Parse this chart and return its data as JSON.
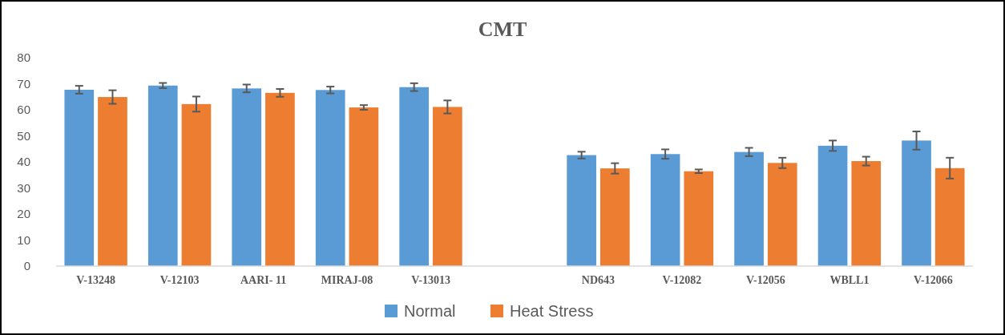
{
  "chart_data": {
    "type": "bar",
    "title": "CMT",
    "categories": [
      "V-13248",
      "V-12103",
      "AARI- 11",
      "MIRAJ-08",
      "V-13013",
      null,
      "ND643",
      "V-12082",
      "V-12056",
      "WBLL1",
      "V-12066"
    ],
    "series": [
      {
        "name": "Normal",
        "color": "#5b9bd5",
        "values": [
          67.7,
          69.3,
          68.2,
          67.6,
          68.7,
          null,
          42.6,
          43,
          43.8,
          46.2,
          48.2
        ],
        "errors": [
          1.5,
          1,
          1.5,
          1.3,
          1.5,
          null,
          1.3,
          1.8,
          1.6,
          2,
          3.5
        ]
      },
      {
        "name": "Heat Stress",
        "color": "#ed7d31",
        "values": [
          64.9,
          62.2,
          66.5,
          60.9,
          61.1,
          null,
          37.5,
          36.4,
          39.6,
          40.3,
          37.6
        ],
        "errors": [
          2.6,
          2.9,
          1.5,
          0.9,
          2.5,
          null,
          2,
          0.7,
          2,
          1.7,
          4
        ]
      }
    ],
    "ylim": [
      0,
      80
    ],
    "yticks": [
      0,
      10,
      20,
      30,
      40,
      50,
      60,
      70,
      80
    ],
    "grid": false,
    "legend": "bottom"
  }
}
